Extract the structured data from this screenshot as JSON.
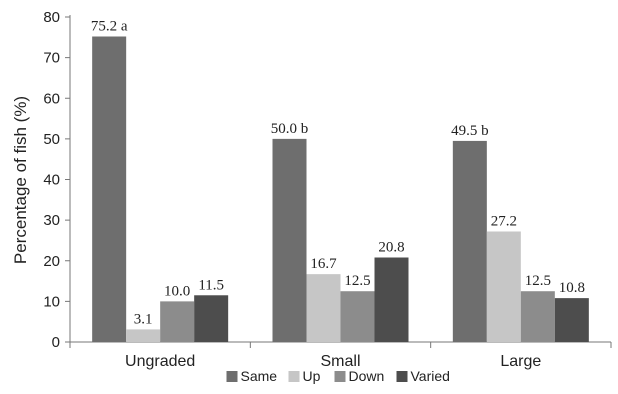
{
  "chart_data": {
    "type": "bar",
    "title": "",
    "xlabel": "",
    "ylabel": "Percentage of fish (%)",
    "ylim": [
      0,
      80
    ],
    "yticks": [
      0,
      10,
      20,
      30,
      40,
      50,
      60,
      70,
      80
    ],
    "grid": false,
    "legend_position": "bottom",
    "categories": [
      "Ungraded",
      "Small",
      "Large"
    ],
    "series": [
      {
        "name": "Same",
        "color": "#6e6e6e",
        "values": [
          75.2,
          50.0,
          49.5
        ],
        "labels": [
          "75.2 a",
          "50.0 b",
          "49.5 b"
        ]
      },
      {
        "name": "Up",
        "color": "#c6c6c6",
        "values": [
          3.1,
          16.7,
          27.2
        ],
        "labels": [
          "3.1",
          "16.7",
          "27.2"
        ]
      },
      {
        "name": "Down",
        "color": "#8c8c8c",
        "values": [
          10.0,
          12.5,
          12.5
        ],
        "labels": [
          "10.0",
          "12.5",
          "12.5"
        ]
      },
      {
        "name": "Varied",
        "color": "#4d4d4d",
        "values": [
          11.5,
          20.8,
          10.8
        ],
        "labels": [
          "11.5",
          "20.8",
          "10.8"
        ]
      }
    ]
  }
}
